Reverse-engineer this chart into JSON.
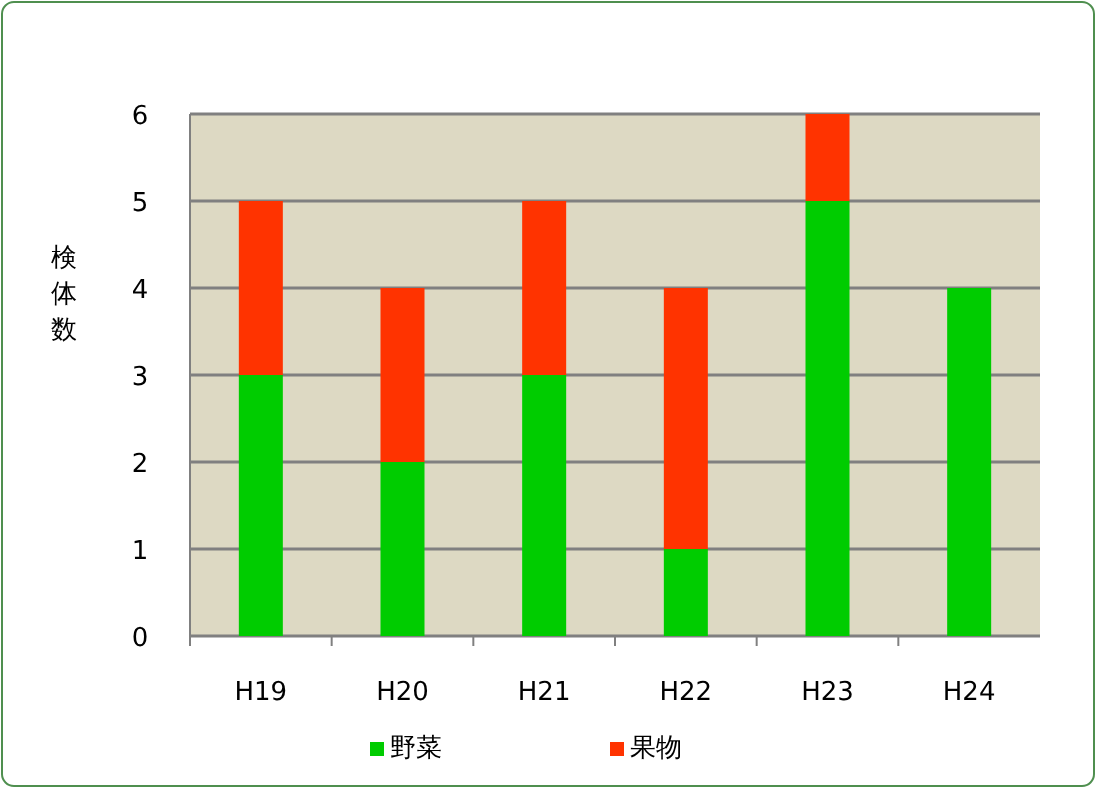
{
  "chart_data": {
    "type": "bar",
    "stacked": true,
    "ylabel": "検体数",
    "categories": [
      "H19",
      "H20",
      "H21",
      "H22",
      "H23",
      "H24"
    ],
    "series": [
      {
        "name": "野菜",
        "color": "#00cc00",
        "values": [
          3,
          2,
          3,
          1,
          5,
          4
        ]
      },
      {
        "name": "果物",
        "color": "#ff3300",
        "values": [
          2,
          2,
          2,
          3,
          1,
          0
        ]
      }
    ],
    "ylim": [
      0,
      6
    ],
    "yticks": [
      0,
      1,
      2,
      3,
      4,
      5,
      6
    ],
    "grid": "y",
    "legend": "bottom"
  }
}
